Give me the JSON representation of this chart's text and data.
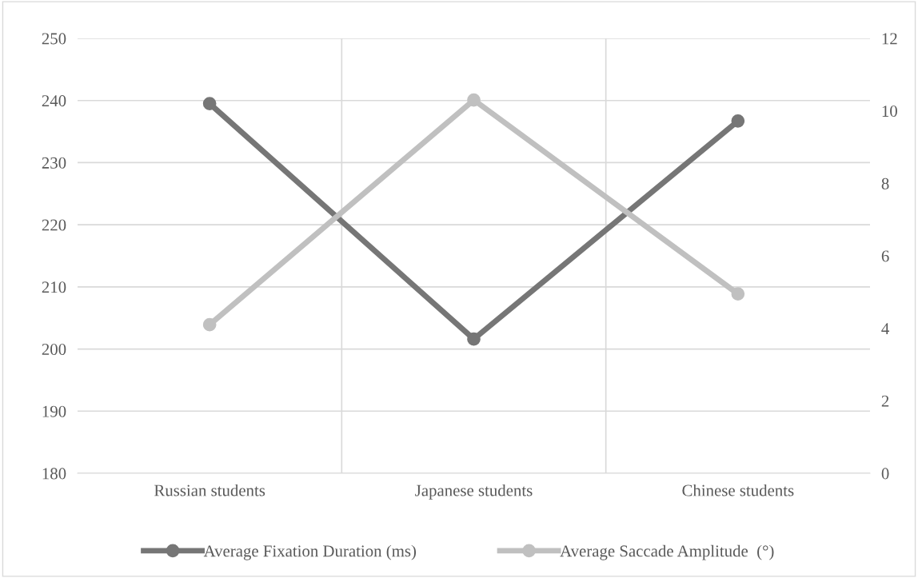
{
  "chart_data": {
    "type": "line",
    "categories": [
      "Russian students",
      "Japanese students",
      "Chinese students"
    ],
    "series": [
      {
        "name": "Average Fixation Duration (ms)",
        "color": "#767676",
        "values": [
          239.5,
          201.6,
          236.7
        ]
      },
      {
        "name": "Average Saccade Amplitude  (°)",
        "color": "#c0c0c0",
        "values": [
          4.1,
          10.3,
          4.95
        ],
        "axis": "y2"
      }
    ],
    "ylim": [
      180,
      250
    ],
    "yticks": [
      180,
      190,
      200,
      210,
      220,
      230,
      240,
      250
    ],
    "y2lim": [
      0,
      12
    ],
    "y2ticks": [
      0,
      2,
      4,
      6,
      8,
      10,
      12
    ],
    "grid": true,
    "legend": "bottom",
    "marker": "circle",
    "line_style": "solid"
  }
}
